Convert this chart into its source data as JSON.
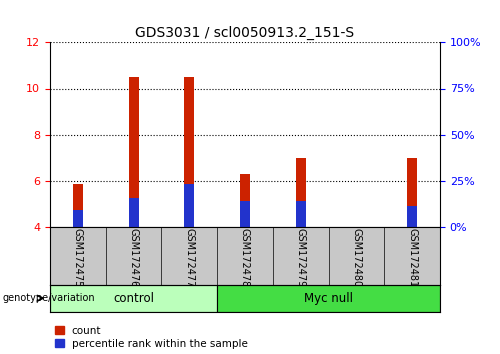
{
  "title": "GDS3031 / scl0050913.2_151-S",
  "samples": [
    "GSM172475",
    "GSM172476",
    "GSM172477",
    "GSM172478",
    "GSM172479",
    "GSM172480",
    "GSM172481"
  ],
  "count_values": [
    5.85,
    10.5,
    10.5,
    6.3,
    7.0,
    4.0,
    7.0
  ],
  "percentile_values": [
    4.7,
    5.25,
    5.85,
    5.1,
    5.1,
    4.0,
    4.9
  ],
  "bar_bottom": 4.0,
  "red_color": "#cc2200",
  "blue_color": "#2233cc",
  "ylim_left": [
    4,
    12
  ],
  "ylim_right": [
    0,
    100
  ],
  "yticks_left": [
    4,
    6,
    8,
    10,
    12
  ],
  "yticks_right": [
    0,
    25,
    50,
    75,
    100
  ],
  "ytick_labels_right": [
    "0%",
    "25%",
    "50%",
    "75%",
    "100%"
  ],
  "groups": [
    {
      "name": "control",
      "start": 0,
      "end": 3,
      "color": "#bbffbb"
    },
    {
      "name": "Myc null",
      "start": 3,
      "end": 7,
      "color": "#44dd44"
    }
  ],
  "group_label": "genotype/variation",
  "legend_items": [
    {
      "label": "count",
      "color": "#cc2200"
    },
    {
      "label": "percentile rank within the sample",
      "color": "#2233cc"
    }
  ],
  "bar_width": 0.18,
  "background_label": "#c8c8c8"
}
